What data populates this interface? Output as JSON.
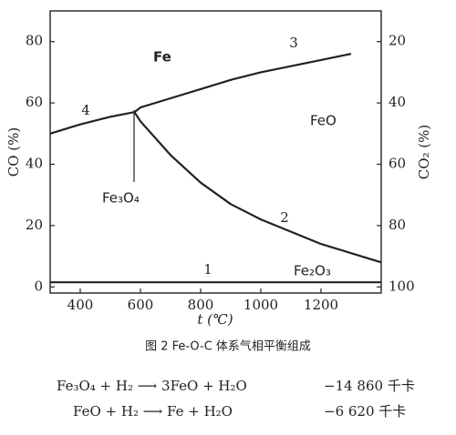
{
  "chart_data": {
    "type": "line",
    "x_label": "t (℃)",
    "y_label": "CO (%)",
    "y2_label": "CO₂ (%)",
    "x": [
      300,
      400,
      500,
      580,
      600,
      700,
      800,
      900,
      1000,
      1100,
      1200,
      1300,
      1400
    ],
    "xlim": [
      300,
      1400
    ],
    "xticks": [
      400,
      600,
      800,
      1000,
      1200
    ],
    "ylim": [
      -2,
      90
    ],
    "yticks": [
      0,
      20,
      40,
      60,
      80
    ],
    "y2lim": [
      102,
      10
    ],
    "y2ticks": [
      20,
      40,
      60,
      80,
      100
    ],
    "series": [
      {
        "color": "#222222",
        "values": [
          1.5,
          1.5,
          1.5,
          1.5,
          1.5,
          1.5,
          1.5,
          1.5,
          1.5,
          1.5,
          1.5,
          1.5,
          1.5
        ]
      },
      {
        "color": "#222222",
        "values": [
          null,
          null,
          null,
          57,
          54,
          43,
          34,
          27,
          22,
          18,
          14,
          11,
          8
        ]
      },
      {
        "color": "#222222",
        "values": [
          50,
          53,
          55.5,
          57,
          58.5,
          61.5,
          64.5,
          67.5,
          70,
          72,
          74,
          76,
          null
        ]
      }
    ],
    "region_labels": [
      "Fe",
      "FeO",
      "Fe₃O₄",
      "Fe₂O₃"
    ],
    "curve_labels": [
      "1",
      "2",
      "3",
      "4"
    ]
  },
  "caption": "图 2  Fe-O-C 体系气相平衡组成",
  "reactions": [
    {
      "equation": "Fe₃O₄ + H₂ ⟶ 3FeO + H₂O",
      "heat": "−14 860 千卡"
    },
    {
      "equation": "FeO + H₂ ⟶ Fe + H₂O",
      "heat": "−6 620 千卡"
    }
  ]
}
